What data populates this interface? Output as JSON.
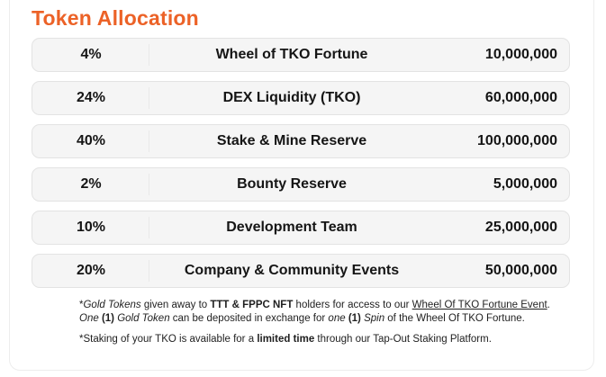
{
  "colors": {
    "accent": "#EC6227"
  },
  "header": {
    "title": "Token Allocation"
  },
  "allocation_table": {
    "rows": [
      {
        "percent": "4%",
        "label": "Wheel of TKO Fortune",
        "amount": "10,000,000"
      },
      {
        "percent": "24%",
        "label": "DEX Liquidity (TKO)",
        "amount": "60,000,000"
      },
      {
        "percent": "40%",
        "label": "Stake & Mine Reserve",
        "amount": "100,000,000"
      },
      {
        "percent": "2%",
        "label": "Bounty Reserve",
        "amount": "5,000,000"
      },
      {
        "percent": "10%",
        "label": "Development Team",
        "amount": "25,000,000"
      },
      {
        "percent": "20%",
        "label": "Company & Community Events",
        "amount": "50,000,000"
      }
    ]
  },
  "footnotes": [
    {
      "lines": [
        [
          {
            "text": "*",
            "style": ""
          },
          {
            "text": "Gold Tokens",
            "style": "italic"
          },
          {
            "text": " given away to ",
            "style": ""
          },
          {
            "text": "TTT & FPPC NFT",
            "style": "bold"
          },
          {
            "text": " holders for access to our ",
            "style": ""
          },
          {
            "text": "Wheel Of TKO Fortune Event",
            "style": "underline"
          },
          {
            "text": ".",
            "style": ""
          }
        ],
        [
          {
            "text": "One ",
            "style": "italic"
          },
          {
            "text": "(1)",
            "style": "bold"
          },
          {
            "text": " Gold Token",
            "style": "italic"
          },
          {
            "text": " can be deposited in exchange for ",
            "style": ""
          },
          {
            "text": "one ",
            "style": "italic"
          },
          {
            "text": "(1)",
            "style": "bold"
          },
          {
            "text": " Spin",
            "style": "italic"
          },
          {
            "text": " of the Wheel Of TKO Fortune.",
            "style": ""
          }
        ]
      ]
    },
    {
      "lines": [
        [
          {
            "text": "*Staking of your TKO is available for a ",
            "style": ""
          },
          {
            "text": "limited time",
            "style": "bold"
          },
          {
            "text": " through our Tap-Out Staking Platform.",
            "style": ""
          }
        ]
      ]
    }
  ]
}
